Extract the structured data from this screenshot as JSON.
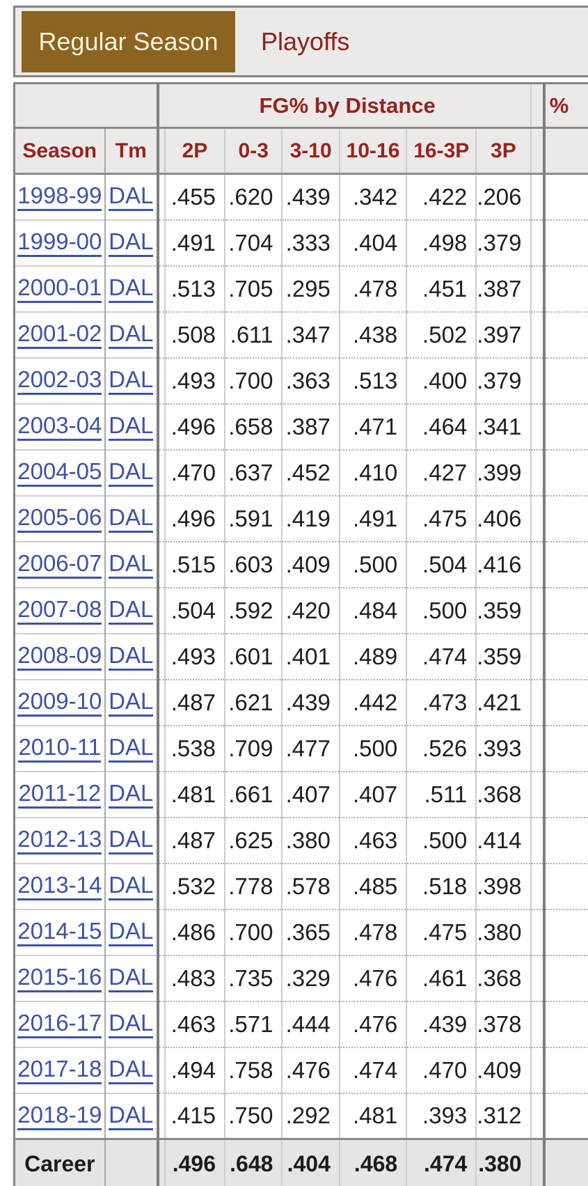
{
  "tabs": {
    "regular_season": "Regular Season",
    "playoffs": "Playoffs"
  },
  "table": {
    "group_header": "FG% by Distance",
    "next_group_partial": "%",
    "columns": [
      "Season",
      "Tm",
      "2P",
      "0-3",
      "3-10",
      "10-16",
      "16-3P",
      "3P"
    ],
    "rows": [
      {
        "season": "1998-99",
        "tm": "DAL",
        "values": [
          ".455",
          ".620",
          ".439",
          ".342",
          ".422",
          ".206"
        ]
      },
      {
        "season": "1999-00",
        "tm": "DAL",
        "values": [
          ".491",
          ".704",
          ".333",
          ".404",
          ".498",
          ".379"
        ]
      },
      {
        "season": "2000-01",
        "tm": "DAL",
        "values": [
          ".513",
          ".705",
          ".295",
          ".478",
          ".451",
          ".387"
        ]
      },
      {
        "season": "2001-02",
        "tm": "DAL",
        "values": [
          ".508",
          ".611",
          ".347",
          ".438",
          ".502",
          ".397"
        ]
      },
      {
        "season": "2002-03",
        "tm": "DAL",
        "values": [
          ".493",
          ".700",
          ".363",
          ".513",
          ".400",
          ".379"
        ]
      },
      {
        "season": "2003-04",
        "tm": "DAL",
        "values": [
          ".496",
          ".658",
          ".387",
          ".471",
          ".464",
          ".341"
        ]
      },
      {
        "season": "2004-05",
        "tm": "DAL",
        "values": [
          ".470",
          ".637",
          ".452",
          ".410",
          ".427",
          ".399"
        ]
      },
      {
        "season": "2005-06",
        "tm": "DAL",
        "values": [
          ".496",
          ".591",
          ".419",
          ".491",
          ".475",
          ".406"
        ]
      },
      {
        "season": "2006-07",
        "tm": "DAL",
        "values": [
          ".515",
          ".603",
          ".409",
          ".500",
          ".504",
          ".416"
        ]
      },
      {
        "season": "2007-08",
        "tm": "DAL",
        "values": [
          ".504",
          ".592",
          ".420",
          ".484",
          ".500",
          ".359"
        ]
      },
      {
        "season": "2008-09",
        "tm": "DAL",
        "values": [
          ".493",
          ".601",
          ".401",
          ".489",
          ".474",
          ".359"
        ]
      },
      {
        "season": "2009-10",
        "tm": "DAL",
        "values": [
          ".487",
          ".621",
          ".439",
          ".442",
          ".473",
          ".421"
        ]
      },
      {
        "season": "2010-11",
        "tm": "DAL",
        "values": [
          ".538",
          ".709",
          ".477",
          ".500",
          ".526",
          ".393"
        ]
      },
      {
        "season": "2011-12",
        "tm": "DAL",
        "values": [
          ".481",
          ".661",
          ".407",
          ".407",
          ".511",
          ".368"
        ]
      },
      {
        "season": "2012-13",
        "tm": "DAL",
        "values": [
          ".487",
          ".625",
          ".380",
          ".463",
          ".500",
          ".414"
        ]
      },
      {
        "season": "2013-14",
        "tm": "DAL",
        "values": [
          ".532",
          ".778",
          ".578",
          ".485",
          ".518",
          ".398"
        ]
      },
      {
        "season": "2014-15",
        "tm": "DAL",
        "values": [
          ".486",
          ".700",
          ".365",
          ".478",
          ".475",
          ".380"
        ]
      },
      {
        "season": "2015-16",
        "tm": "DAL",
        "values": [
          ".483",
          ".735",
          ".329",
          ".476",
          ".461",
          ".368"
        ]
      },
      {
        "season": "2016-17",
        "tm": "DAL",
        "values": [
          ".463",
          ".571",
          ".444",
          ".476",
          ".439",
          ".378"
        ]
      },
      {
        "season": "2017-18",
        "tm": "DAL",
        "values": [
          ".494",
          ".758",
          ".476",
          ".474",
          ".470",
          ".409"
        ]
      },
      {
        "season": "2018-19",
        "tm": "DAL",
        "values": [
          ".415",
          ".750",
          ".292",
          ".481",
          ".393",
          ".312"
        ]
      }
    ],
    "career": {
      "label": "Career",
      "values": [
        ".496",
        ".648",
        ".404",
        ".468",
        ".474",
        ".380"
      ]
    }
  },
  "colors": {
    "active_tab_bg": "#8A6420",
    "active_tab_text": "#F9F1DE",
    "header_text": "#97231D",
    "link": "#3E51A8",
    "header_bg": "#ECEAE8",
    "career_bg": "#E7E5E3",
    "border_dark": "#848484"
  }
}
